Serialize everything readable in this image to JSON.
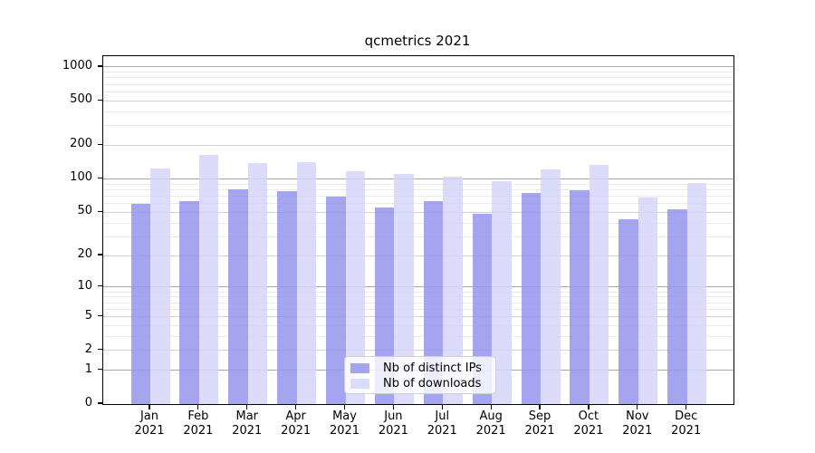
{
  "chart_data": {
    "type": "bar",
    "title": "qcmetrics 2021",
    "x_months": [
      "Jan",
      "Feb",
      "Mar",
      "Apr",
      "May",
      "Jun",
      "Jul",
      "Aug",
      "Sep",
      "Oct",
      "Nov",
      "Dec"
    ],
    "x_year": "2021",
    "categories": [
      "Jan 2021",
      "Feb 2021",
      "Mar 2021",
      "Apr 2021",
      "May 2021",
      "Jun 2021",
      "Jul 2021",
      "Aug 2021",
      "Sep 2021",
      "Oct 2021",
      "Nov 2021",
      "Dec 2021"
    ],
    "series": [
      {
        "name": "Nb of distinct IPs",
        "color": "#a4a4ef",
        "values": [
          60,
          63,
          80,
          78,
          69,
          55,
          63,
          48,
          75,
          79,
          43,
          53
        ]
      },
      {
        "name": "Nb of downloads",
        "color": "#dcdcfa",
        "values": [
          124,
          163,
          139,
          142,
          117,
          110,
          104,
          95,
          122,
          134,
          68,
          92
        ]
      }
    ],
    "y_axis": {
      "scale": "log10(1+x)",
      "ticks": [
        0,
        1,
        2,
        5,
        10,
        20,
        50,
        100,
        200,
        500,
        1000
      ],
      "tick_labels": [
        "0",
        "1",
        "2",
        "5",
        "10",
        "20",
        "50",
        "100",
        "200",
        "500",
        "1000"
      ],
      "range_top": 1250
    },
    "xlabel": "",
    "ylabel": "",
    "grid": true,
    "legend_position": "lower center"
  },
  "colors": {
    "frame": "#000000",
    "major_gridline": "#a8a8a8",
    "minor_gridline": "#eaeaea",
    "background": "#ffffff"
  }
}
